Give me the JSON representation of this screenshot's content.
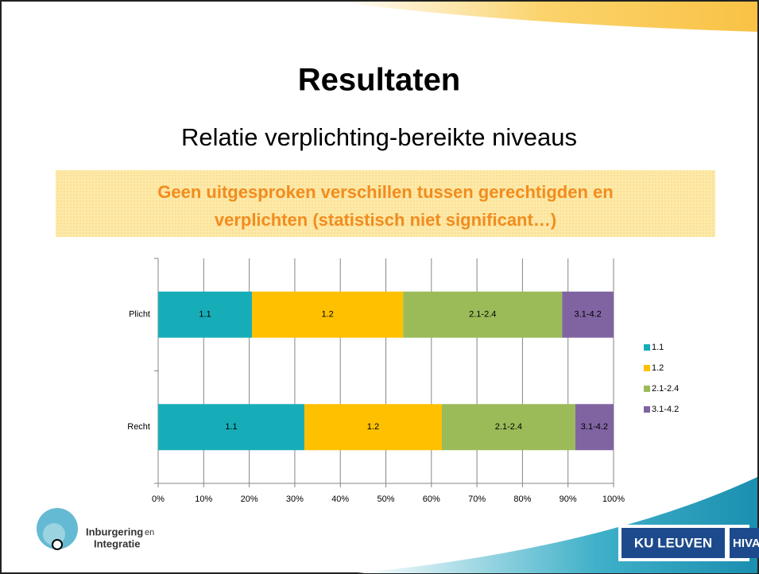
{
  "slide": {
    "title": "Resultaten",
    "subtitle": "Relatie verplichting-bereikte niveaus",
    "callout": [
      "Geen uitgesproken verschillen tussen gerechtigden en",
      "verplichten (statistisch niet significant…)"
    ],
    "logo_left": [
      "Inburgering",
      "en",
      "Integratie"
    ],
    "logo_right": [
      "KU LEUVEN",
      "HIVA"
    ]
  },
  "chart_data": {
    "type": "bar",
    "orientation": "horizontal",
    "stacked": true,
    "categories": [
      "Plicht",
      "Recht"
    ],
    "series": [
      {
        "name": "1.1",
        "color": "#17adb8",
        "values": [
          20.6,
          32.1
        ]
      },
      {
        "name": "1.2",
        "color": "#ffc000",
        "values": [
          33.2,
          30.2
        ]
      },
      {
        "name": "2.1-2.4",
        "color": "#9bbb59",
        "values": [
          34.9,
          29.3
        ]
      },
      {
        "name": "3.1-4.2",
        "color": "#8064a2",
        "values": [
          11.3,
          8.4
        ]
      }
    ],
    "xlim": [
      0,
      100
    ],
    "xticks": [
      {
        "value": 0,
        "label": "0%"
      },
      {
        "value": 10,
        "label": "10%"
      },
      {
        "value": 20,
        "label": "20%"
      },
      {
        "value": 30,
        "label": "30%"
      },
      {
        "value": 40,
        "label": "40%"
      },
      {
        "value": 50,
        "label": "50%"
      },
      {
        "value": 60,
        "label": "60%"
      },
      {
        "value": 70,
        "label": "70%"
      },
      {
        "value": 80,
        "label": "80%"
      },
      {
        "value": 90,
        "label": "90%"
      },
      {
        "value": 100,
        "label": "100%"
      }
    ],
    "grid": true,
    "legend": "right"
  }
}
